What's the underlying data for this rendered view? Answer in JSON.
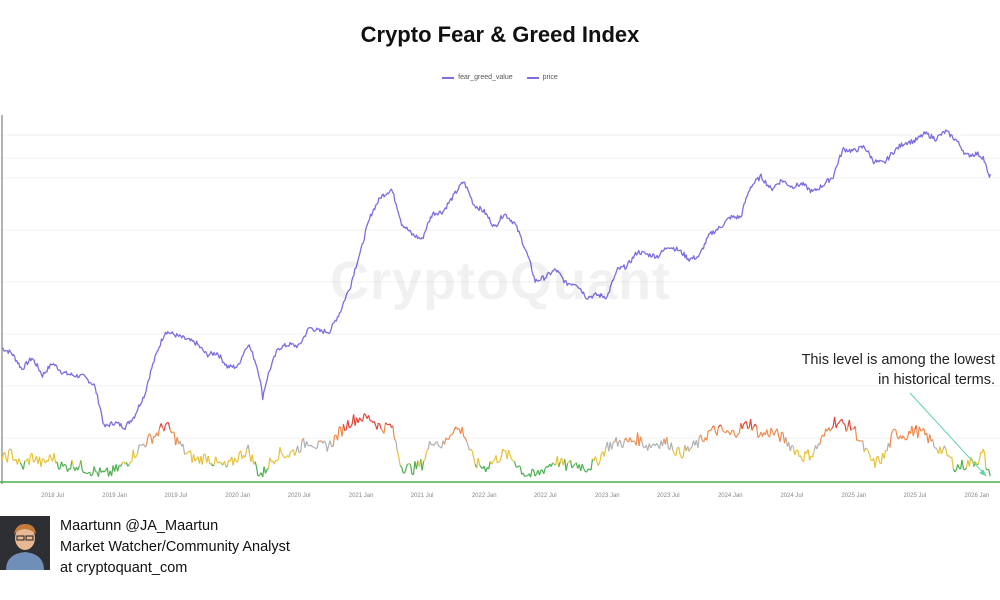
{
  "chart_data": {
    "type": "line",
    "title": "Crypto Fear & Greed Index",
    "watermark": "CryptoQuant",
    "legend": {
      "placement": "top-center",
      "entries": [
        "fear_greed_value",
        "price"
      ]
    },
    "x_ticks": [
      "2018 Jul",
      "2019 Jan",
      "2019 Jul",
      "2020 Jan",
      "2020 Jul",
      "2021 Jan",
      "2021 Jul",
      "2022 Jan",
      "2022 Jul",
      "2023 Jan",
      "2023 Jul",
      "2024 Jan",
      "2024 Jul",
      "2025 Jan",
      "2025 Jul",
      "2026 Jan"
    ],
    "x_range": [
      "2018-02",
      "2026-02"
    ],
    "y_price_scale": "log",
    "grid": true,
    "colors": {
      "price": "#7b6fe0",
      "extreme_fear": "#4caf50",
      "fear": "#e6c23a",
      "neutral": "#b0b0b0",
      "greed": "#f08a4b",
      "extreme_greed": "#e0453a",
      "annotation_arrow": "#5fd3a8"
    },
    "series": [
      {
        "name": "price",
        "points": [
          [
            "2018-02-01",
            9000
          ],
          [
            "2018-03-01",
            8500
          ],
          [
            "2018-04-01",
            7000
          ],
          [
            "2018-05-01",
            8000
          ],
          [
            "2018-06-01",
            6500
          ],
          [
            "2018-07-01",
            7500
          ],
          [
            "2018-08-01",
            6700
          ],
          [
            "2018-09-01",
            6500
          ],
          [
            "2018-10-01",
            6400
          ],
          [
            "2018-11-01",
            5800
          ],
          [
            "2018-12-01",
            3500
          ],
          [
            "2019-01-01",
            3700
          ],
          [
            "2019-02-01",
            3500
          ],
          [
            "2019-03-01",
            4000
          ],
          [
            "2019-04-01",
            5200
          ],
          [
            "2019-05-01",
            8000
          ],
          [
            "2019-06-01",
            11000
          ],
          [
            "2019-07-01",
            10500
          ],
          [
            "2019-08-01",
            10000
          ],
          [
            "2019-09-01",
            9500
          ],
          [
            "2019-10-01",
            8300
          ],
          [
            "2019-11-01",
            8500
          ],
          [
            "2019-12-01",
            7200
          ],
          [
            "2020-01-01",
            7200
          ],
          [
            "2020-02-01",
            9500
          ],
          [
            "2020-03-01",
            7000
          ],
          [
            "2020-03-15",
            5000
          ],
          [
            "2020-04-01",
            6600
          ],
          [
            "2020-05-01",
            9000
          ],
          [
            "2020-06-01",
            9400
          ],
          [
            "2020-07-01",
            9200
          ],
          [
            "2020-08-01",
            11500
          ],
          [
            "2020-09-01",
            11000
          ],
          [
            "2020-10-01",
            11000
          ],
          [
            "2020-11-01",
            14000
          ],
          [
            "2020-12-01",
            19000
          ],
          [
            "2021-01-01",
            29000
          ],
          [
            "2021-02-01",
            45000
          ],
          [
            "2021-03-01",
            55000
          ],
          [
            "2021-04-01",
            60000
          ],
          [
            "2021-05-01",
            40000
          ],
          [
            "2021-06-01",
            35000
          ],
          [
            "2021-07-01",
            33000
          ],
          [
            "2021-08-01",
            45000
          ],
          [
            "2021-09-01",
            46000
          ],
          [
            "2021-10-01",
            55000
          ],
          [
            "2021-11-01",
            66000
          ],
          [
            "2021-12-01",
            50000
          ],
          [
            "2022-01-01",
            46000
          ],
          [
            "2022-02-01",
            38000
          ],
          [
            "2022-03-01",
            45000
          ],
          [
            "2022-04-01",
            40000
          ],
          [
            "2022-05-01",
            30000
          ],
          [
            "2022-06-01",
            20000
          ],
          [
            "2022-07-01",
            21000
          ],
          [
            "2022-08-01",
            23000
          ],
          [
            "2022-09-01",
            19500
          ],
          [
            "2022-10-01",
            19500
          ],
          [
            "2022-11-01",
            16500
          ],
          [
            "2022-12-01",
            17000
          ],
          [
            "2023-01-01",
            16600
          ],
          [
            "2023-02-01",
            23000
          ],
          [
            "2023-03-01",
            24000
          ],
          [
            "2023-04-01",
            28500
          ],
          [
            "2023-05-01",
            27500
          ],
          [
            "2023-06-01",
            27000
          ],
          [
            "2023-07-01",
            30500
          ],
          [
            "2023-08-01",
            29000
          ],
          [
            "2023-09-01",
            26000
          ],
          [
            "2023-10-01",
            27000
          ],
          [
            "2023-11-01",
            35000
          ],
          [
            "2023-12-01",
            38000
          ],
          [
            "2024-01-01",
            43000
          ],
          [
            "2024-02-01",
            43000
          ],
          [
            "2024-03-01",
            62000
          ],
          [
            "2024-04-01",
            70000
          ],
          [
            "2024-05-01",
            60000
          ],
          [
            "2024-06-01",
            67000
          ],
          [
            "2024-07-01",
            62000
          ],
          [
            "2024-08-01",
            64000
          ],
          [
            "2024-09-01",
            58000
          ],
          [
            "2024-10-01",
            63000
          ],
          [
            "2024-11-01",
            70000
          ],
          [
            "2024-12-01",
            97000
          ],
          [
            "2025-01-01",
            95000
          ],
          [
            "2025-02-01",
            100000
          ],
          [
            "2025-03-01",
            84000
          ],
          [
            "2025-04-01",
            82000
          ],
          [
            "2025-05-01",
            95000
          ],
          [
            "2025-06-01",
            105000
          ],
          [
            "2025-07-01",
            107000
          ],
          [
            "2025-08-01",
            117000
          ],
          [
            "2025-09-01",
            110000
          ],
          [
            "2025-10-01",
            120000
          ],
          [
            "2025-11-01",
            108000
          ],
          [
            "2025-12-01",
            90000
          ],
          [
            "2026-01-01",
            92000
          ],
          [
            "2026-01-20",
            88000
          ],
          [
            "2026-02-05",
            70000
          ],
          [
            "2026-02-10",
            72000
          ]
        ]
      },
      {
        "name": "fear_greed_value",
        "points": [
          [
            "2018-02-01",
            30
          ],
          [
            "2018-03-01",
            40
          ],
          [
            "2018-04-01",
            20
          ],
          [
            "2018-05-01",
            35
          ],
          [
            "2018-06-01",
            25
          ],
          [
            "2018-07-01",
            35
          ],
          [
            "2018-08-01",
            20
          ],
          [
            "2018-09-01",
            25
          ],
          [
            "2018-10-01",
            20
          ],
          [
            "2018-11-01",
            15
          ],
          [
            "2018-12-01",
            10
          ],
          [
            "2019-01-01",
            15
          ],
          [
            "2019-02-01",
            25
          ],
          [
            "2019-03-01",
            40
          ],
          [
            "2019-04-01",
            55
          ],
          [
            "2019-05-01",
            65
          ],
          [
            "2019-06-01",
            80
          ],
          [
            "2019-07-01",
            60
          ],
          [
            "2019-08-01",
            40
          ],
          [
            "2019-09-01",
            30
          ],
          [
            "2019-10-01",
            35
          ],
          [
            "2019-11-01",
            25
          ],
          [
            "2019-12-01",
            20
          ],
          [
            "2020-01-01",
            35
          ],
          [
            "2020-02-01",
            45
          ],
          [
            "2020-03-01",
            15
          ],
          [
            "2020-03-15",
            10
          ],
          [
            "2020-04-01",
            25
          ],
          [
            "2020-05-01",
            40
          ],
          [
            "2020-06-01",
            38
          ],
          [
            "2020-07-01",
            48
          ],
          [
            "2020-08-01",
            58
          ],
          [
            "2020-09-01",
            48
          ],
          [
            "2020-10-01",
            52
          ],
          [
            "2020-11-01",
            70
          ],
          [
            "2020-12-01",
            85
          ],
          [
            "2021-01-01",
            90
          ],
          [
            "2021-02-01",
            88
          ],
          [
            "2021-03-01",
            75
          ],
          [
            "2021-04-01",
            78
          ],
          [
            "2021-05-01",
            22
          ],
          [
            "2021-06-01",
            18
          ],
          [
            "2021-07-01",
            25
          ],
          [
            "2021-08-01",
            60
          ],
          [
            "2021-09-01",
            50
          ],
          [
            "2021-10-01",
            75
          ],
          [
            "2021-11-01",
            70
          ],
          [
            "2021-12-01",
            28
          ],
          [
            "2022-01-01",
            20
          ],
          [
            "2022-02-01",
            30
          ],
          [
            "2022-03-01",
            40
          ],
          [
            "2022-04-01",
            30
          ],
          [
            "2022-05-01",
            12
          ],
          [
            "2022-06-01",
            8
          ],
          [
            "2022-07-01",
            20
          ],
          [
            "2022-08-01",
            30
          ],
          [
            "2022-09-01",
            22
          ],
          [
            "2022-10-01",
            25
          ],
          [
            "2022-11-01",
            20
          ],
          [
            "2022-12-01",
            28
          ],
          [
            "2023-01-01",
            50
          ],
          [
            "2023-02-01",
            55
          ],
          [
            "2023-03-01",
            55
          ],
          [
            "2023-04-01",
            60
          ],
          [
            "2023-05-01",
            50
          ],
          [
            "2023-06-01",
            55
          ],
          [
            "2023-07-01",
            55
          ],
          [
            "2023-08-01",
            40
          ],
          [
            "2023-09-01",
            45
          ],
          [
            "2023-10-01",
            55
          ],
          [
            "2023-11-01",
            70
          ],
          [
            "2023-12-01",
            72
          ],
          [
            "2024-01-01",
            65
          ],
          [
            "2024-02-01",
            75
          ],
          [
            "2024-03-01",
            82
          ],
          [
            "2024-04-01",
            65
          ],
          [
            "2024-05-01",
            70
          ],
          [
            "2024-06-01",
            62
          ],
          [
            "2024-07-01",
            50
          ],
          [
            "2024-08-01",
            35
          ],
          [
            "2024-09-01",
            40
          ],
          [
            "2024-10-01",
            60
          ],
          [
            "2024-11-01",
            85
          ],
          [
            "2024-12-01",
            80
          ],
          [
            "2025-01-01",
            75
          ],
          [
            "2025-02-01",
            45
          ],
          [
            "2025-03-01",
            25
          ],
          [
            "2025-04-01",
            35
          ],
          [
            "2025-05-01",
            68
          ],
          [
            "2025-06-01",
            65
          ],
          [
            "2025-07-01",
            72
          ],
          [
            "2025-08-01",
            65
          ],
          [
            "2025-09-01",
            50
          ],
          [
            "2025-10-01",
            40
          ],
          [
            "2025-11-01",
            20
          ],
          [
            "2025-12-01",
            25
          ],
          [
            "2026-01-01",
            30
          ],
          [
            "2026-01-20",
            40
          ],
          [
            "2026-02-05",
            10
          ],
          [
            "2026-02-10",
            8
          ]
        ]
      }
    ],
    "annotation": {
      "lines": [
        "This level is among the lowest",
        "in historical terms."
      ],
      "points_to": [
        "2026-02-10",
        8
      ]
    }
  },
  "author": {
    "line1": "Maartunn @JA_Maartun",
    "line2": "Market Watcher/Community Analyst",
    "line3": "at cryptoquant_com"
  }
}
